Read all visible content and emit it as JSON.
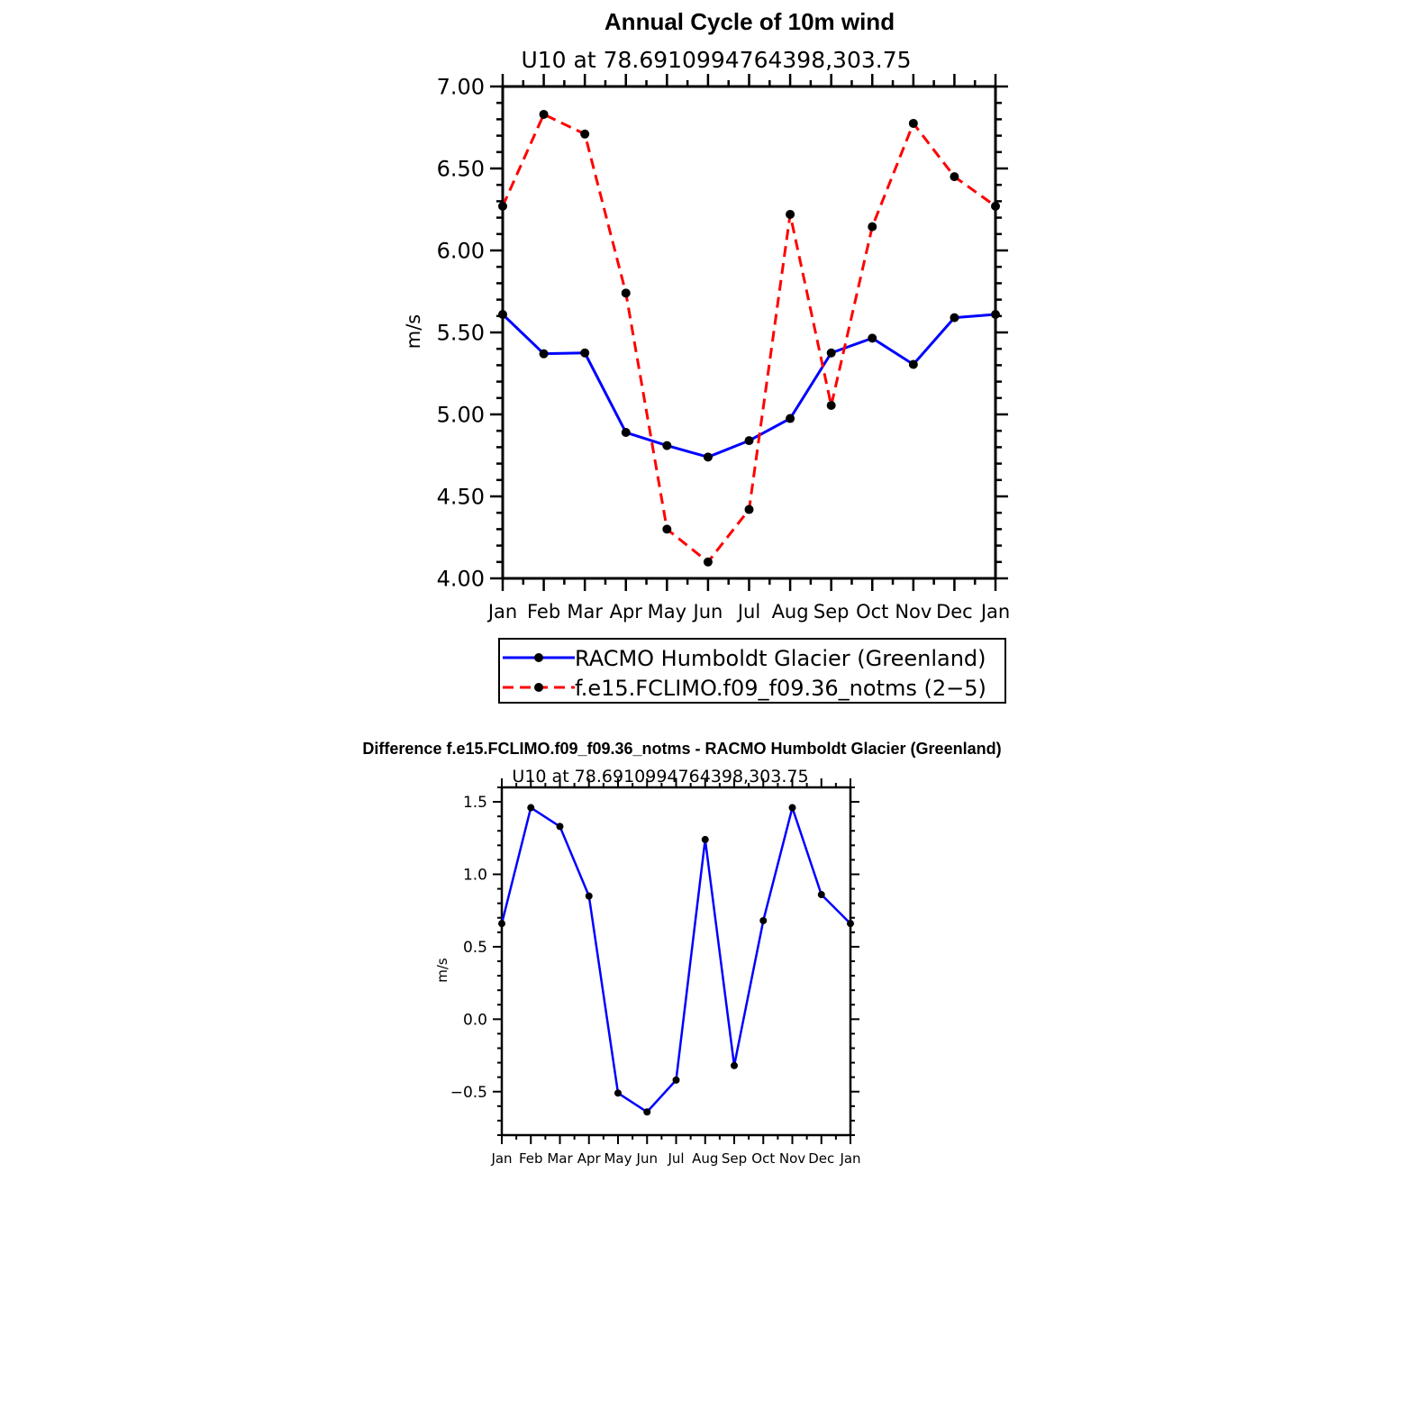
{
  "colors": {
    "series1": "#0000ff",
    "series2": "#ff0000",
    "axis": "#000000",
    "marker": "#000000"
  },
  "chart_data": [
    {
      "type": "line",
      "title": "Annual Cycle of 10m wind",
      "subtitle": "U10  at  78.6910994764398,303.75",
      "ylabel": "m/s",
      "xlabel": "",
      "categories": [
        "Jan",
        "Feb",
        "Mar",
        "Apr",
        "May",
        "Jun",
        "Jul",
        "Aug",
        "Sep",
        "Oct",
        "Nov",
        "Dec",
        "Jan"
      ],
      "ylim": [
        4.0,
        7.0
      ],
      "yticks": [
        4.0,
        4.5,
        5.0,
        5.5,
        6.0,
        6.5,
        7.0
      ],
      "ytick_labels": [
        "4.00",
        "4.50",
        "5.00",
        "5.50",
        "6.00",
        "6.50",
        "7.00"
      ],
      "series": [
        {
          "name": "RACMO Humboldt Glacier (Greenland)",
          "style": "solid",
          "color": "#0000ff",
          "values": [
            5.61,
            5.37,
            5.375,
            4.89,
            4.81,
            4.74,
            4.84,
            4.975,
            5.375,
            5.465,
            5.305,
            5.59,
            5.61
          ]
        },
        {
          "name": "f.e15.FCLIMO.f09_f09.36_notms (2−5)",
          "style": "dashed",
          "color": "#ff0000",
          "values": [
            6.27,
            6.83,
            6.71,
            5.74,
            4.3,
            4.1,
            4.42,
            6.22,
            5.055,
            6.145,
            6.775,
            6.45,
            6.27
          ]
        }
      ],
      "legend": "bottom"
    },
    {
      "type": "line",
      "title": "Difference f.e15.FCLIMO.f09_f09.36_notms - RACMO Humboldt Glacier (Greenland)",
      "subtitle": "U10  at  78.6910994764398,303.75",
      "ylabel": "m/s",
      "xlabel": "",
      "categories": [
        "Jan",
        "Feb",
        "Mar",
        "Apr",
        "May",
        "Jun",
        "Jul",
        "Aug",
        "Sep",
        "Oct",
        "Nov",
        "Dec",
        "Jan"
      ],
      "ylim": [
        -0.8,
        1.6
      ],
      "yticks": [
        -0.5,
        0.0,
        0.5,
        1.0,
        1.5
      ],
      "ytick_labels": [
        "−0.5",
        "0.0",
        "0.5",
        "1.0",
        "1.5"
      ],
      "series": [
        {
          "name": "Difference",
          "style": "solid",
          "color": "#0000ff",
          "values": [
            0.66,
            1.46,
            1.33,
            0.85,
            -0.51,
            -0.64,
            -0.42,
            1.24,
            -0.32,
            0.68,
            1.46,
            0.86,
            0.66
          ]
        }
      ]
    }
  ]
}
